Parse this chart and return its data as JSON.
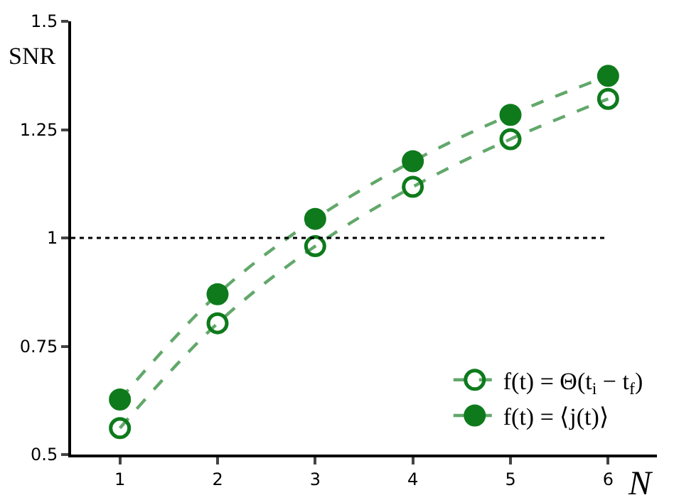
{
  "chart_data": {
    "type": "line",
    "xlabel": "N",
    "ylabel": "SNR",
    "x": [
      1,
      2,
      3,
      4,
      5,
      6
    ],
    "series": [
      {
        "name": "f(t) = Θ(t$_{i}$ − t$_{f}$)",
        "color": "#0e7a1c",
        "marker": "circle-open",
        "values": [
          0.561,
          0.803,
          0.981,
          1.118,
          1.228,
          1.321
        ]
      },
      {
        "name": "f(t) = ⟨j(t)⟩",
        "color": "#0e7a1c",
        "marker": "circle",
        "values": [
          0.627,
          0.87,
          1.044,
          1.177,
          1.284,
          1.374
        ]
      }
    ],
    "xlim": [
      0.5,
      6.5
    ],
    "xticks": [
      1,
      2,
      3,
      4,
      5,
      6
    ],
    "ylim": [
      0.5,
      1.5
    ],
    "yticks": [
      0.5,
      0.75,
      1,
      1.25,
      1.5
    ],
    "ref_lines": [
      {
        "axis": "y",
        "value": 1,
        "color": "#000000",
        "line_style": "dotted"
      }
    ],
    "line_style": "dashed",
    "legend": "bottom right"
  }
}
